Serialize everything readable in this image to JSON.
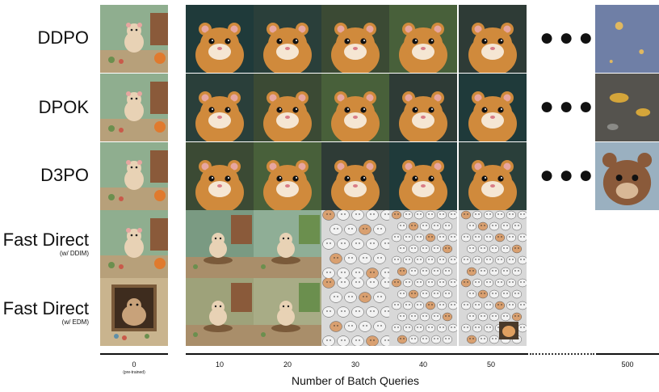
{
  "rows": [
    {
      "label": "DDPO",
      "sub": ""
    },
    {
      "label": "DPOK",
      "sub": ""
    },
    {
      "label": "D3PO",
      "sub": ""
    },
    {
      "label": "Fast Direct",
      "sub": "(w/ DDIM)"
    },
    {
      "label": "Fast Direct",
      "sub": "(w/ EDM)"
    }
  ],
  "ellipsis": "●●●",
  "axis": {
    "pretrained_tick": "0",
    "pretrained_sub": "(pre-trained)",
    "ticks": [
      "10",
      "20",
      "30",
      "40",
      "50"
    ],
    "far_tick": "500",
    "xlabel": "Number of Batch Queries"
  },
  "colors": {
    "hamster_fur": "#d08a3c",
    "hamster_dark_bg": "#1f3a3a",
    "pretrained_bg": "#8fae8f",
    "sketch_bg": "#d8d8d8"
  }
}
